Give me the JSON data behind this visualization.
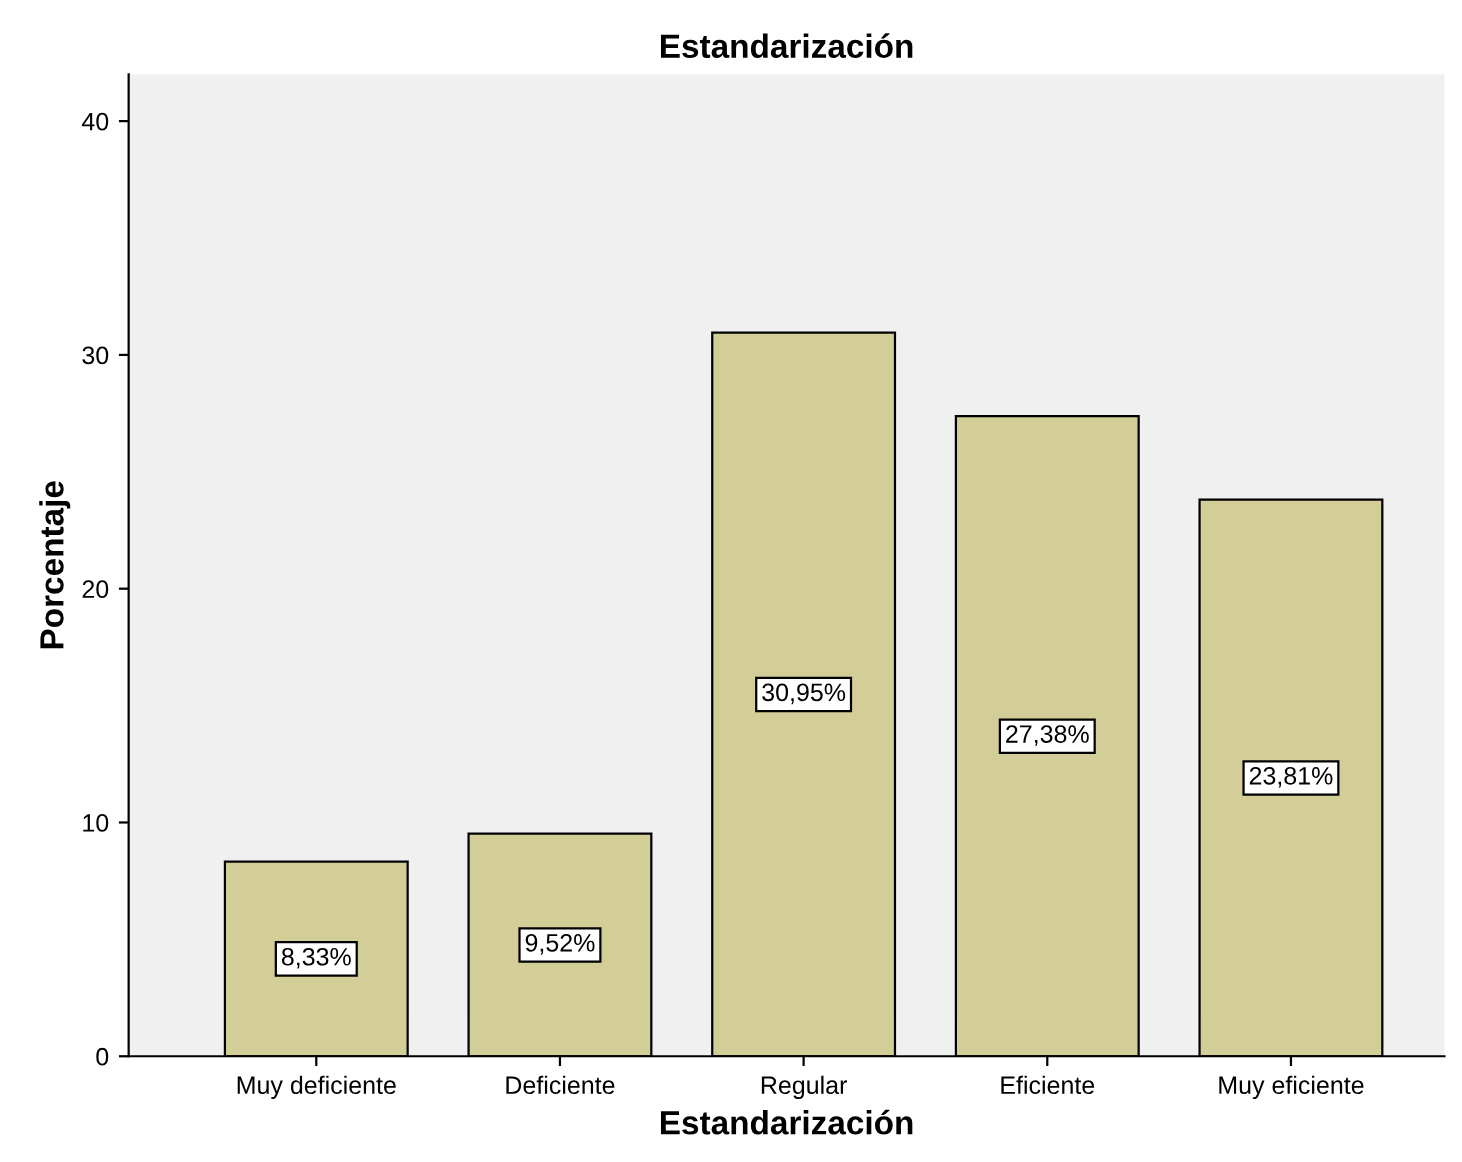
{
  "chart_data": {
    "type": "bar",
    "title": "Estandarización",
    "xlabel": "Estandarización",
    "ylabel": "Porcentaje",
    "categories": [
      "Muy deficiente",
      "Deficiente",
      "Regular",
      "Eficiente",
      "Muy eficiente"
    ],
    "values": [
      8.33,
      9.52,
      30.95,
      27.38,
      23.81
    ],
    "value_labels": [
      "8,33%",
      "9,52%",
      "30,95%",
      "27,38%",
      "23,81%"
    ],
    "color": "#d3ce98",
    "ylim": [
      0,
      42
    ],
    "yticks": [
      0,
      10,
      20,
      30,
      40
    ],
    "grid": false,
    "legend": false
  }
}
